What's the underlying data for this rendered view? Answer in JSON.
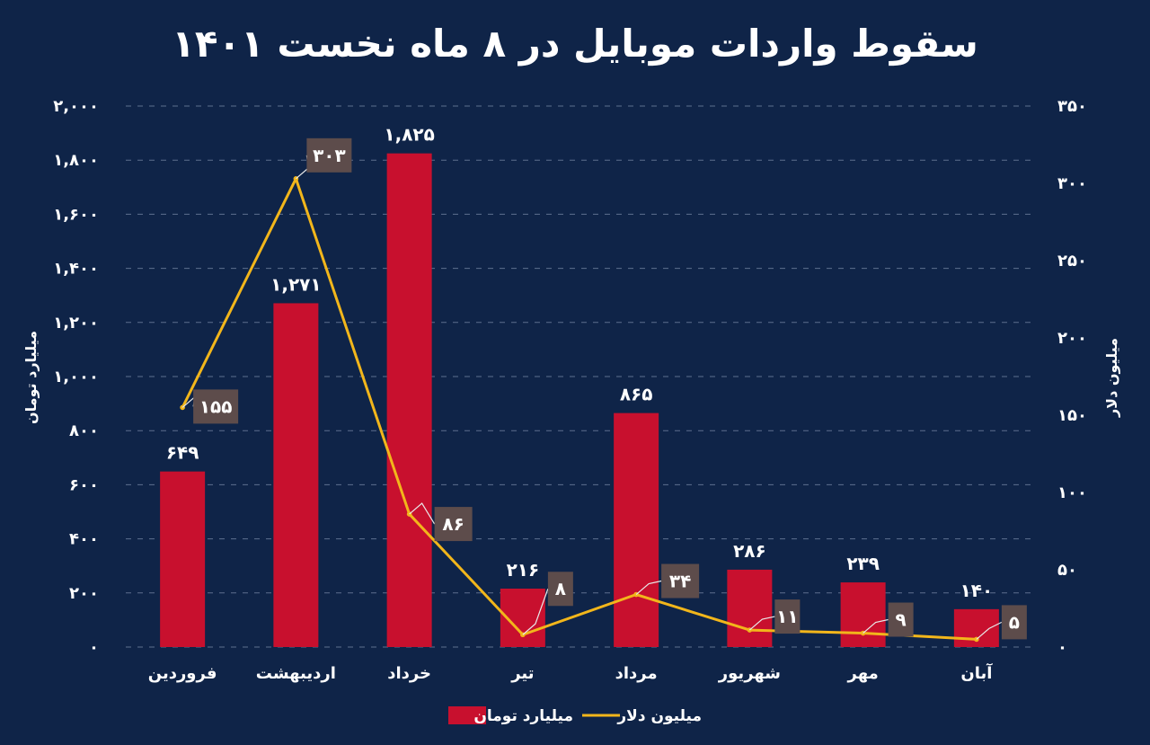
{
  "chart_data": {
    "type": "bar+line",
    "title": "سقوط واردات موبایل در ۸ ماه نخست ۱۴۰۱",
    "categories": [
      "فروردین",
      "اردیبهشت",
      "خرداد",
      "تیر",
      "مرداد",
      "شهریور",
      "مهر",
      "آبان"
    ],
    "series": [
      {
        "name": "میلیارد تومان",
        "type": "bar",
        "axis": "left",
        "color": "#c8102e",
        "values": [
          649,
          1271,
          1825,
          216,
          865,
          286,
          239,
          140
        ],
        "labels": [
          "۶۴۹",
          "۱,۲۷۱",
          "۱,۸۲۵",
          "۲۱۶",
          "۸۶۵",
          "۲۸۶",
          "۲۳۹",
          "۱۴۰"
        ]
      },
      {
        "name": "میلیون دلار",
        "type": "line",
        "axis": "right",
        "color": "#f2b61b",
        "values": [
          155,
          303,
          86,
          8,
          34,
          11,
          9,
          5
        ],
        "labels": [
          "۱۵۵",
          "۳۰۳",
          "۸۶",
          "۸",
          "۳۴",
          "۱۱",
          "۹",
          "۵"
        ]
      }
    ],
    "y_left": {
      "label": "میلیارد تومان",
      "range": [
        0,
        2000
      ],
      "ticks": [
        0,
        200,
        400,
        600,
        800,
        1000,
        1200,
        1400,
        1600,
        1800,
        2000
      ],
      "tick_labels": [
        "۰",
        "۲۰۰",
        "۴۰۰",
        "۶۰۰",
        "۸۰۰",
        "۱,۰۰۰",
        "۱,۲۰۰",
        "۱,۴۰۰",
        "۱,۶۰۰",
        "۱,۸۰۰",
        "۲,۰۰۰"
      ]
    },
    "y_right": {
      "label": "میلیون دلار",
      "range": [
        0,
        350
      ],
      "ticks": [
        0,
        50,
        100,
        150,
        200,
        250,
        300,
        350
      ],
      "tick_labels": [
        "۰",
        "۵۰",
        "۱۰۰",
        "۱۵۰",
        "۲۰۰",
        "۲۵۰",
        "۳۰۰",
        "۳۵۰"
      ]
    },
    "grid": true,
    "legend": {
      "position": "bottom-center",
      "items": [
        {
          "label": "میلیارد تومان",
          "color": "#c8102e",
          "kind": "box"
        },
        {
          "label": "میلیون دلار",
          "color": "#f2b61b",
          "kind": "line"
        }
      ]
    }
  },
  "colors": {
    "background": "#0f2448",
    "text": "#ffffff",
    "grid": "#5e6f8e",
    "line_label_bg": "#5d4c4b"
  }
}
